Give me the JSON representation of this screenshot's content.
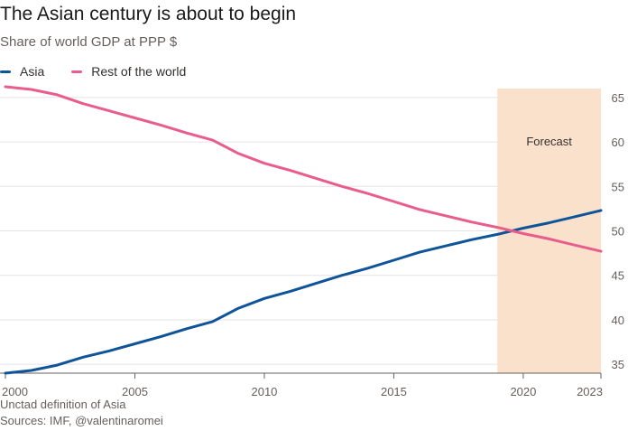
{
  "chart_data": {
    "type": "line",
    "title": "The Asian century is about to begin",
    "subtitle": "Share of world GDP at PPP $",
    "xlabel": "",
    "ylabel": "",
    "x": [
      2000,
      2001,
      2002,
      2003,
      2004,
      2005,
      2006,
      2007,
      2008,
      2009,
      2010,
      2011,
      2012,
      2013,
      2014,
      2015,
      2016,
      2017,
      2018,
      2019,
      2020,
      2021,
      2022,
      2023
    ],
    "xlim": [
      2000,
      2023
    ],
    "ylim": [
      34,
      66
    ],
    "x_ticks": [
      "2000",
      "2005",
      "2010",
      "2015",
      "2020",
      "2023"
    ],
    "y_ticks": [
      "35",
      "40",
      "45",
      "50",
      "55",
      "60",
      "65"
    ],
    "grid": "horizontal",
    "legend_position": "top-left",
    "series": [
      {
        "name": "Asia",
        "color": "#0f5499",
        "values": [
          34.0,
          34.3,
          34.9,
          35.8,
          36.5,
          37.3,
          38.1,
          39.0,
          39.8,
          41.3,
          42.4,
          43.2,
          44.1,
          45.0,
          45.8,
          46.7,
          47.6,
          48.3,
          49.0,
          49.6,
          50.3,
          50.9,
          51.6,
          52.3
        ]
      },
      {
        "name": "Rest of the world",
        "color": "#e95d8c",
        "values": [
          66.2,
          65.9,
          65.3,
          64.3,
          63.5,
          62.7,
          61.9,
          61.0,
          60.2,
          58.7,
          57.6,
          56.8,
          55.9,
          55.0,
          54.2,
          53.3,
          52.4,
          51.7,
          51.0,
          50.4,
          49.7,
          49.1,
          48.4,
          47.7
        ]
      }
    ],
    "forecast": {
      "label": "Forecast",
      "start": 2019,
      "end": 2023,
      "color": "#fae1cc"
    }
  },
  "footnotes": {
    "definition": "Unctad definition of Asia",
    "sources": "Sources: IMF, @valentinaromei"
  }
}
